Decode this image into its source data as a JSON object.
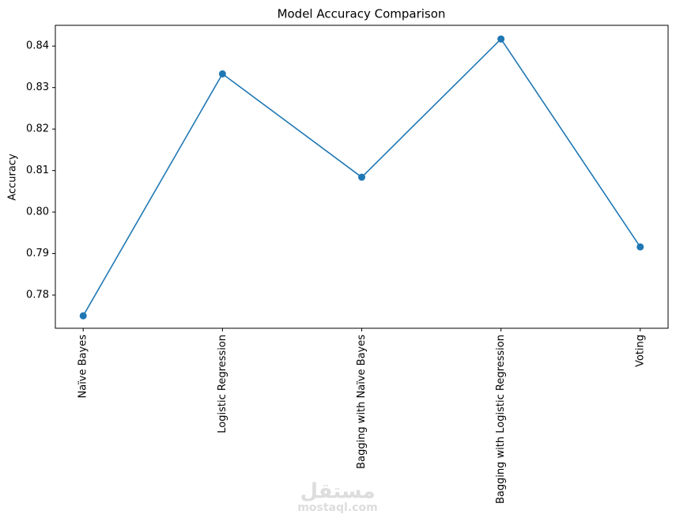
{
  "chart_data": {
    "type": "line",
    "title": "Model Accuracy Comparison",
    "y_label": "Accuracy",
    "categories": [
      "Naïve Bayes",
      "Logistic Regression",
      "Bagging with Naïve Bayes",
      "Bagging with Logistic Regression",
      "Voting"
    ],
    "values": [
      0.775,
      0.8333,
      0.8084,
      0.8417,
      0.7916
    ],
    "color": "#1f77b4",
    "ylim": [
      0.772,
      0.845
    ],
    "yticks": [
      0.78,
      0.79,
      {
        "value": 0.8,
        "label": "0.80"
      },
      0.81,
      0.82,
      0.83,
      0.84
    ],
    "grid": false,
    "watermark": [
      "مستقل",
      "mostaql.com"
    ]
  }
}
